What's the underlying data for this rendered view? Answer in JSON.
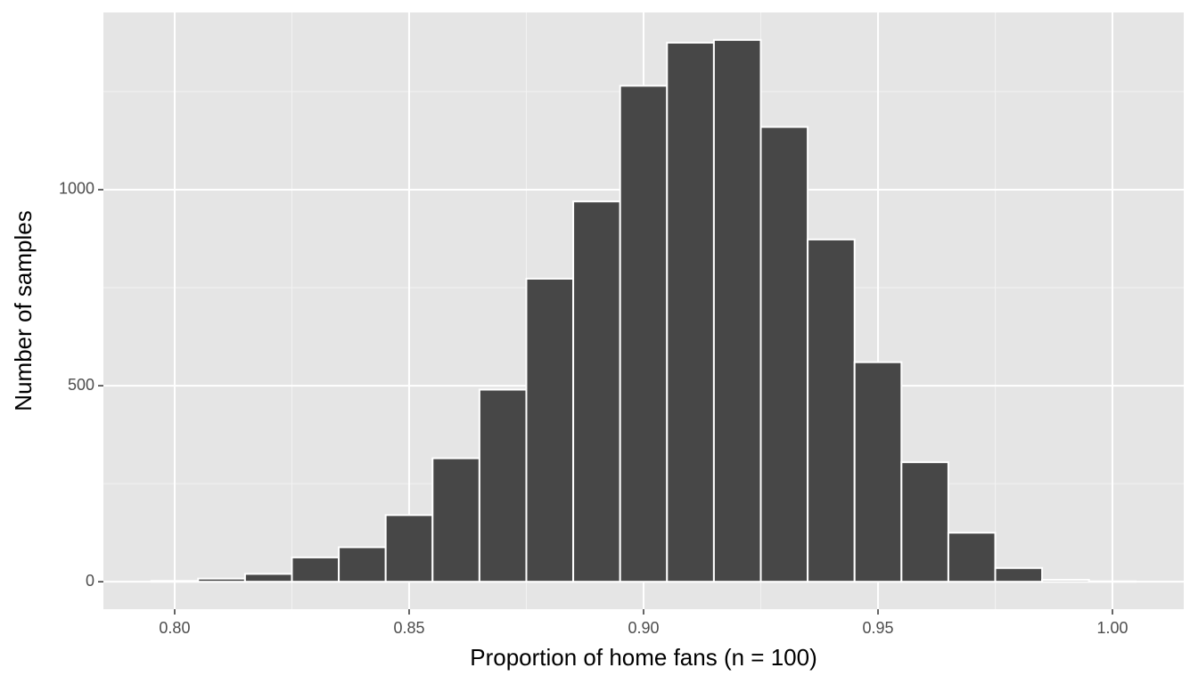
{
  "chart_data": {
    "type": "histogram",
    "x_label": "Proportion of home fans (n = 100)",
    "y_label": "Number of samples",
    "bins": [
      0.795,
      0.805,
      0.815,
      0.825,
      0.835,
      0.845,
      0.855,
      0.865,
      0.875,
      0.885,
      0.895,
      0.905,
      0.915,
      0.925,
      0.935,
      0.945,
      0.955,
      0.965,
      0.975,
      0.985,
      0.995,
      1.005
    ],
    "values": [
      2,
      8,
      20,
      62,
      88,
      170,
      315,
      490,
      773,
      970,
      1265,
      1375,
      1382,
      1160,
      873,
      560,
      305,
      125,
      35,
      5,
      1
    ],
    "color": "#474747",
    "edge_color": "#ffffff",
    "xlim": [
      0.7848,
      1.0152
    ],
    "ylim": [
      -70,
      1452
    ],
    "xticks": [
      {
        "value": 0.8,
        "label": "0.80"
      },
      {
        "value": 0.85,
        "label": "0.85"
      },
      {
        "value": 0.9,
        "label": "0.90"
      },
      {
        "value": 0.95,
        "label": "0.95"
      },
      {
        "value": 1.0,
        "label": "1.00"
      }
    ],
    "yticks": [
      0,
      500,
      1000
    ],
    "xminor": [
      0.825,
      0.875,
      0.925,
      0.975
    ],
    "yminor": [
      250,
      750,
      1250
    ],
    "grid": true
  }
}
